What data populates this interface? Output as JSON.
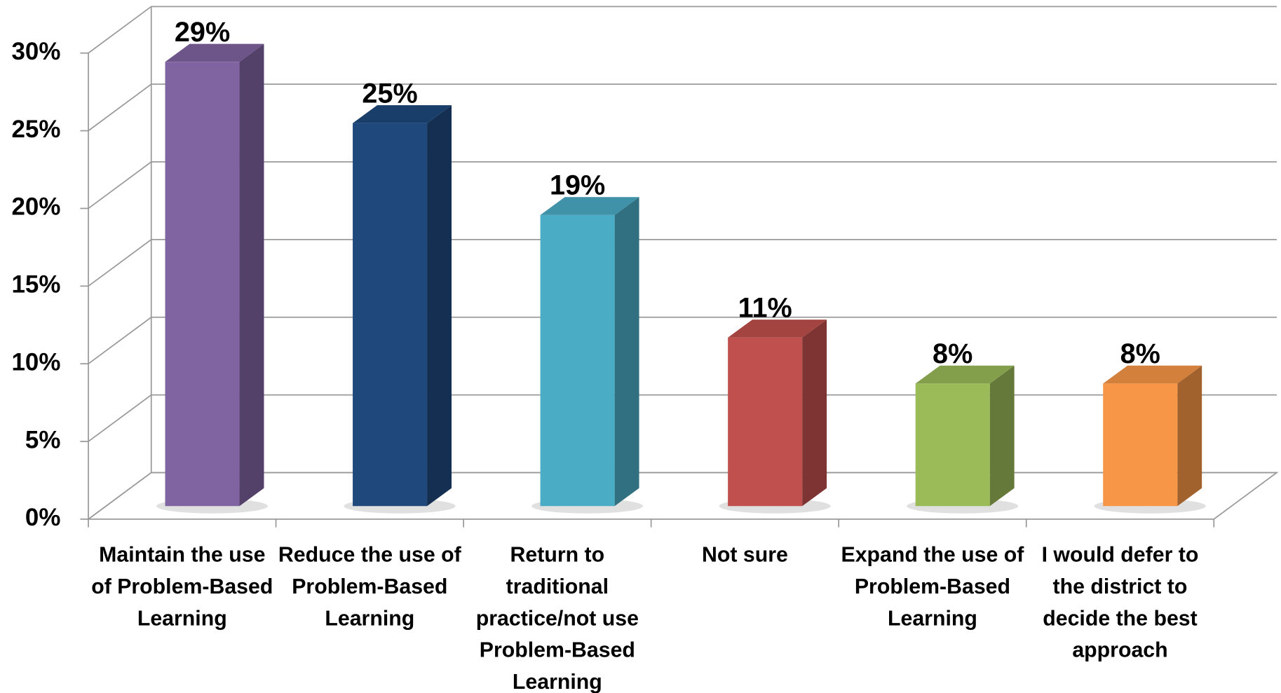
{
  "chart_data": {
    "type": "bar3d",
    "categories": [
      "Maintain the use of Problem-Based Learning",
      "Reduce the use of Problem-Based Learning",
      "Return to traditional practice/not use Problem-Based Learning",
      "Not sure",
      "Expand the use of Problem-Based Learning",
      "I would defer to the district to decide the best approach"
    ],
    "values": [
      29,
      25,
      19,
      11,
      8,
      8
    ],
    "value_labels": [
      "29%",
      "25%",
      "19%",
      "11%",
      "8%",
      "8%"
    ],
    "colors": [
      "#8064a2",
      "#1f497d",
      "#4bacc6",
      "#c0504d",
      "#9bbb59",
      "#f79646"
    ],
    "ylim": [
      0,
      30
    ],
    "yticks": [
      {
        "value": 0,
        "label": "0%"
      },
      {
        "value": 5,
        "label": "5%"
      },
      {
        "value": 10,
        "label": "10%"
      },
      {
        "value": 15,
        "label": "15%"
      },
      {
        "value": 20,
        "label": "20%"
      },
      {
        "value": 25,
        "label": "25%"
      },
      {
        "value": 30,
        "label": "30%"
      }
    ],
    "grid": true
  }
}
